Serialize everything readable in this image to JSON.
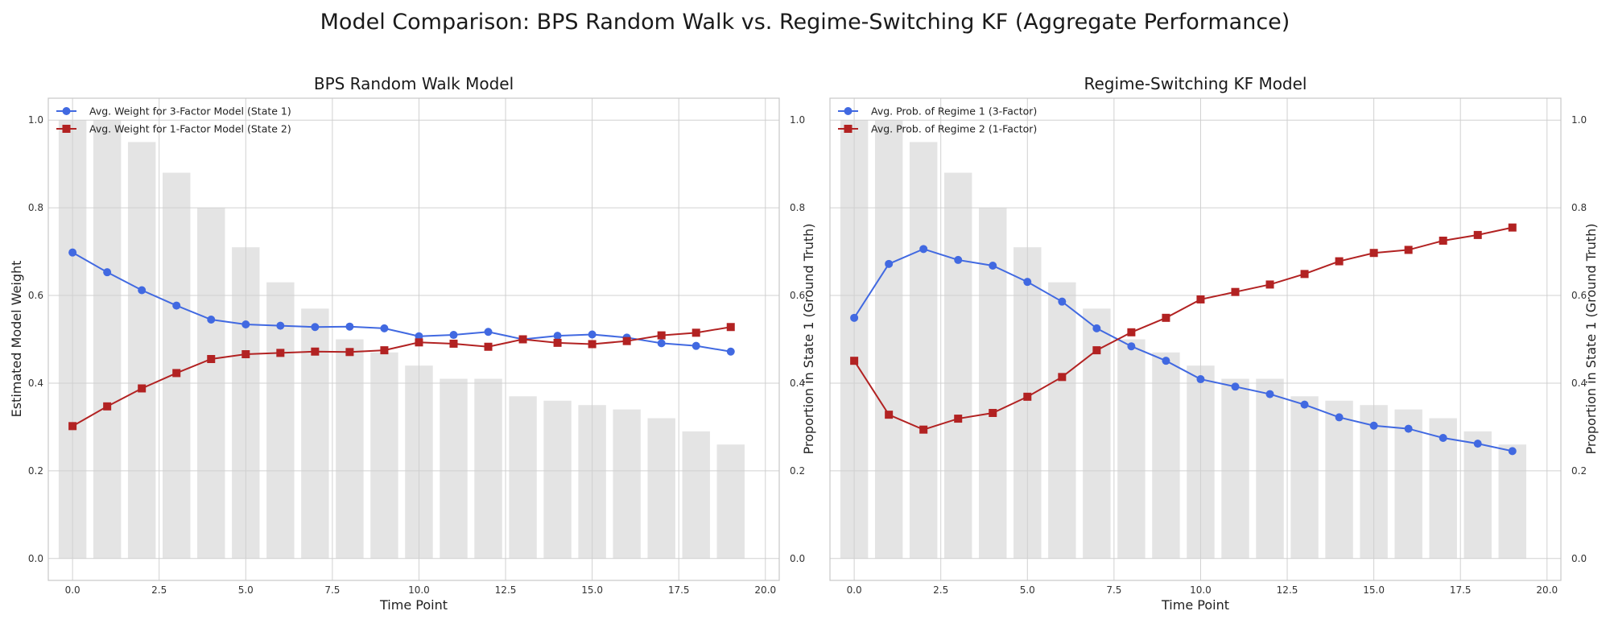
{
  "figure": {
    "title": "Model Comparison: BPS Random Walk vs. Regime-Switching KF (Aggregate Performance)"
  },
  "colors": {
    "state1": "#4169e1",
    "state2": "#b22222",
    "bars": "#e4e4e4",
    "grid": "#d0d0d0",
    "spine": "#c8c8c8"
  },
  "chart_data": [
    {
      "type": "line",
      "title": "BPS Random Walk Model",
      "xlabel": "Time Point",
      "ylabel": "Estimated Model Weight",
      "ylabel_right": "Proportion in State 1 (Ground Truth)",
      "xlim": [
        -0.7,
        20.4
      ],
      "ylim": [
        -0.05,
        1.05
      ],
      "xticks": [
        0.0,
        2.5,
        5.0,
        7.5,
        10.0,
        12.5,
        15.0,
        17.5,
        20.0
      ],
      "yticks": [
        0.0,
        0.2,
        0.4,
        0.6,
        0.8,
        1.0
      ],
      "grid": true,
      "legend_position": "upper-left",
      "x": [
        0,
        1,
        2,
        3,
        4,
        5,
        6,
        7,
        8,
        9,
        10,
        11,
        12,
        13,
        14,
        15,
        16,
        17,
        18,
        19
      ],
      "bars": [
        1.0,
        1.0,
        0.95,
        0.88,
        0.8,
        0.71,
        0.63,
        0.57,
        0.5,
        0.47,
        0.44,
        0.41,
        0.41,
        0.37,
        0.36,
        0.35,
        0.34,
        0.32,
        0.29,
        0.26
      ],
      "series": [
        {
          "name": "Avg. Weight for 3-Factor Model (State 1)",
          "marker": "circle",
          "values": [
            0.698,
            0.653,
            0.612,
            0.577,
            0.545,
            0.534,
            0.531,
            0.528,
            0.529,
            0.525,
            0.507,
            0.51,
            0.517,
            0.5,
            0.508,
            0.511,
            0.504,
            0.491,
            0.485,
            0.472
          ]
        },
        {
          "name": "Avg. Weight for 1-Factor Model (State 2)",
          "marker": "square",
          "values": [
            0.302,
            0.347,
            0.388,
            0.423,
            0.455,
            0.466,
            0.469,
            0.472,
            0.471,
            0.475,
            0.493,
            0.49,
            0.483,
            0.5,
            0.492,
            0.489,
            0.496,
            0.509,
            0.515,
            0.528
          ]
        }
      ]
    },
    {
      "type": "line",
      "title": "Regime-Switching KF Model",
      "xlabel": "Time Point",
      "ylabel": "",
      "ylabel_right": "Proportion in State 1 (Ground Truth)",
      "xlim": [
        -0.7,
        20.4
      ],
      "ylim": [
        -0.05,
        1.05
      ],
      "xticks": [
        0.0,
        2.5,
        5.0,
        7.5,
        10.0,
        12.5,
        15.0,
        17.5,
        20.0
      ],
      "yticks": [
        0.0,
        0.2,
        0.4,
        0.6,
        0.8,
        1.0
      ],
      "grid": true,
      "legend_position": "upper-left",
      "x": [
        0,
        1,
        2,
        3,
        4,
        5,
        6,
        7,
        8,
        9,
        10,
        11,
        12,
        13,
        14,
        15,
        16,
        17,
        18,
        19
      ],
      "bars": [
        1.0,
        1.0,
        0.95,
        0.88,
        0.8,
        0.71,
        0.63,
        0.57,
        0.5,
        0.47,
        0.44,
        0.41,
        0.41,
        0.37,
        0.36,
        0.35,
        0.34,
        0.32,
        0.29,
        0.26
      ],
      "series": [
        {
          "name": "Avg. Prob. of Regime 1 (3-Factor)",
          "marker": "circle",
          "values": [
            0.549,
            0.672,
            0.706,
            0.681,
            0.668,
            0.631,
            0.586,
            0.525,
            0.484,
            0.451,
            0.409,
            0.392,
            0.375,
            0.351,
            0.322,
            0.303,
            0.296,
            0.275,
            0.262,
            0.245
          ]
        },
        {
          "name": "Avg. Prob. of Regime 2 (1-Factor)",
          "marker": "square",
          "values": [
            0.451,
            0.328,
            0.294,
            0.319,
            0.332,
            0.369,
            0.414,
            0.475,
            0.516,
            0.549,
            0.591,
            0.608,
            0.625,
            0.649,
            0.678,
            0.697,
            0.704,
            0.725,
            0.738,
            0.755
          ]
        }
      ]
    }
  ]
}
